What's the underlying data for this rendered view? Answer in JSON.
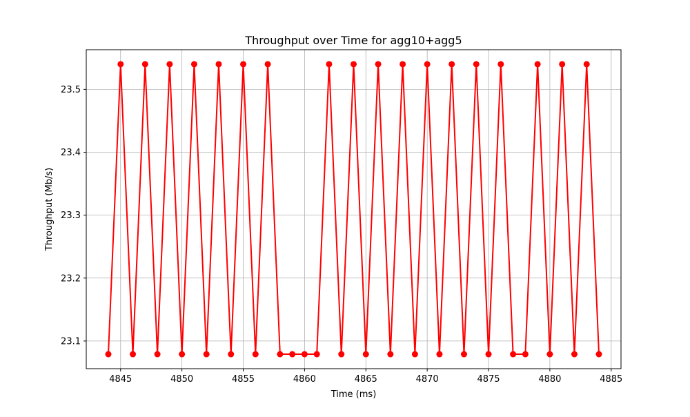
{
  "chart_data": {
    "type": "line",
    "title": "Throughput over Time for agg10+agg5",
    "xlabel": "Time (ms)",
    "ylabel": "Throughput (Mb/s)",
    "xlim": [
      4842.2,
      4885.8
    ],
    "ylim": [
      23.056,
      23.563
    ],
    "grid": true,
    "xticks": [
      4845,
      4850,
      4855,
      4860,
      4865,
      4870,
      4875,
      4880,
      4885
    ],
    "xtick_labels": [
      "4845",
      "4850",
      "4855",
      "4860",
      "4865",
      "4870",
      "4875",
      "4880",
      "4885"
    ],
    "yticks": [
      23.1,
      23.2,
      23.3,
      23.4,
      23.5
    ],
    "ytick_labels": [
      "23.1",
      "23.2",
      "23.3",
      "23.4",
      "23.5"
    ],
    "series": [
      {
        "color": "#ff0000",
        "marker": "circle",
        "x": [
          4844,
          4845,
          4846,
          4847,
          4848,
          4849,
          4850,
          4851,
          4852,
          4853,
          4854,
          4855,
          4856,
          4857,
          4858,
          4859,
          4860,
          4861,
          4862,
          4863,
          4864,
          4865,
          4866,
          4867,
          4868,
          4869,
          4870,
          4871,
          4872,
          4873,
          4874,
          4875,
          4876,
          4877,
          4878,
          4879,
          4880,
          4881,
          4882,
          4883,
          4884
        ],
        "y": [
          23.079,
          23.54,
          23.079,
          23.54,
          23.079,
          23.54,
          23.079,
          23.54,
          23.079,
          23.54,
          23.079,
          23.54,
          23.079,
          23.54,
          23.079,
          23.079,
          23.079,
          23.079,
          23.54,
          23.079,
          23.54,
          23.079,
          23.54,
          23.079,
          23.54,
          23.079,
          23.54,
          23.079,
          23.54,
          23.079,
          23.54,
          23.079,
          23.54,
          23.079,
          23.079,
          23.54,
          23.079,
          23.54,
          23.079,
          23.54,
          23.079
        ]
      }
    ]
  }
}
